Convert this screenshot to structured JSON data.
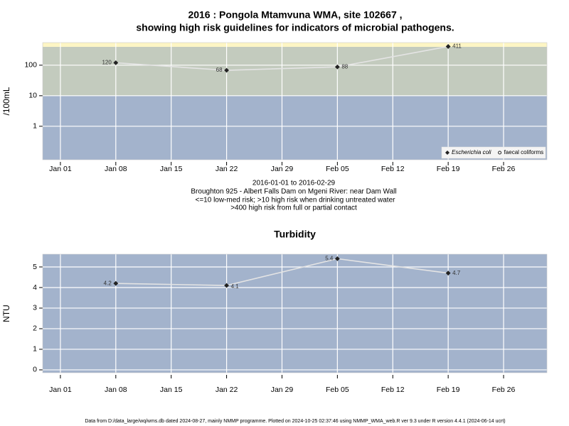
{
  "title_lines": [
    "2016 : Pongola Mtamvuna WMA, site 102667 ,",
    "showing high risk guidelines for indicators of microbial pathogens."
  ],
  "notes": [
    "2016-01-01 to 2016-02-29",
    "Broughton 925 - Albert Falls Dam on Mgeni River: near Dam Wall",
    "<=10 low-med risk; >10 high risk when drinking untreated water",
    ">400 high risk from full or partial contact"
  ],
  "footer": "Data from D:/data_large/wq/wms.db dated 2024-08-27, mainly NMMP programme. Plotted on 2024-10-25 02:37:46 using NMMP_WMA_web.R ver 9.3 under R version 4.4.1 (2024-06-14 ucrt)",
  "chart_data": [
    {
      "type": "line",
      "log_y": true,
      "ylabel": "/100mL",
      "x": [
        8,
        22,
        36,
        50
      ],
      "series": [
        {
          "name": "Escherichia coli",
          "color": "#222222",
          "marker": "diamond",
          "values": [
            120,
            68,
            88,
            411
          ]
        },
        {
          "name": "faecal coliforms",
          "color": "#222222",
          "marker": "circle",
          "values": [
            null,
            null,
            null,
            null
          ]
        }
      ],
      "line_color": "#e4e4e4",
      "xlim": [
        -1.24,
        62.48
      ],
      "xticks": [
        {
          "value": 1,
          "label": "Jan 01"
        },
        {
          "value": 8,
          "label": "Jan 08"
        },
        {
          "value": 15,
          "label": "Jan 15"
        },
        {
          "value": 22,
          "label": "Jan 22"
        },
        {
          "value": 29,
          "label": "Jan 29"
        },
        {
          "value": 36,
          "label": "Feb 05"
        },
        {
          "value": 43,
          "label": "Feb 12"
        },
        {
          "value": 50,
          "label": "Feb 19"
        },
        {
          "value": 57,
          "label": "Feb 26"
        }
      ],
      "ylim": [
        0.08,
        550
      ],
      "yticks": [
        1,
        10,
        100
      ],
      "band_breaks": [
        10,
        400
      ],
      "band_colors": [
        "#a3b3cc",
        "#c3cbbe",
        "#fdf5c4"
      ],
      "grid": true,
      "legend": "lower right"
    },
    {
      "type": "line",
      "title": "Turbidity",
      "ylabel": "NTU",
      "x": [
        8,
        22,
        36,
        50
      ],
      "values": [
        4.2,
        4.1,
        5.4,
        4.7
      ],
      "color": "#222222",
      "marker": "diamond",
      "line_color": "#e4e4e4",
      "xlim": [
        -1.24,
        62.48
      ],
      "xticks": [
        {
          "value": 1,
          "label": "Jan 01"
        },
        {
          "value": 8,
          "label": "Jan 08"
        },
        {
          "value": 15,
          "label": "Jan 15"
        },
        {
          "value": 22,
          "label": "Jan 22"
        },
        {
          "value": 29,
          "label": "Jan 29"
        },
        {
          "value": 36,
          "label": "Feb 05"
        },
        {
          "value": 43,
          "label": "Feb 12"
        },
        {
          "value": 50,
          "label": "Feb 19"
        },
        {
          "value": 57,
          "label": "Feb 26"
        }
      ],
      "ylim": [
        -0.14,
        5.62
      ],
      "yticks": [
        0,
        1,
        2,
        3,
        4,
        5
      ],
      "band_breaks": [],
      "band_colors": [
        "#a3b3cc"
      ],
      "grid": true
    }
  ]
}
